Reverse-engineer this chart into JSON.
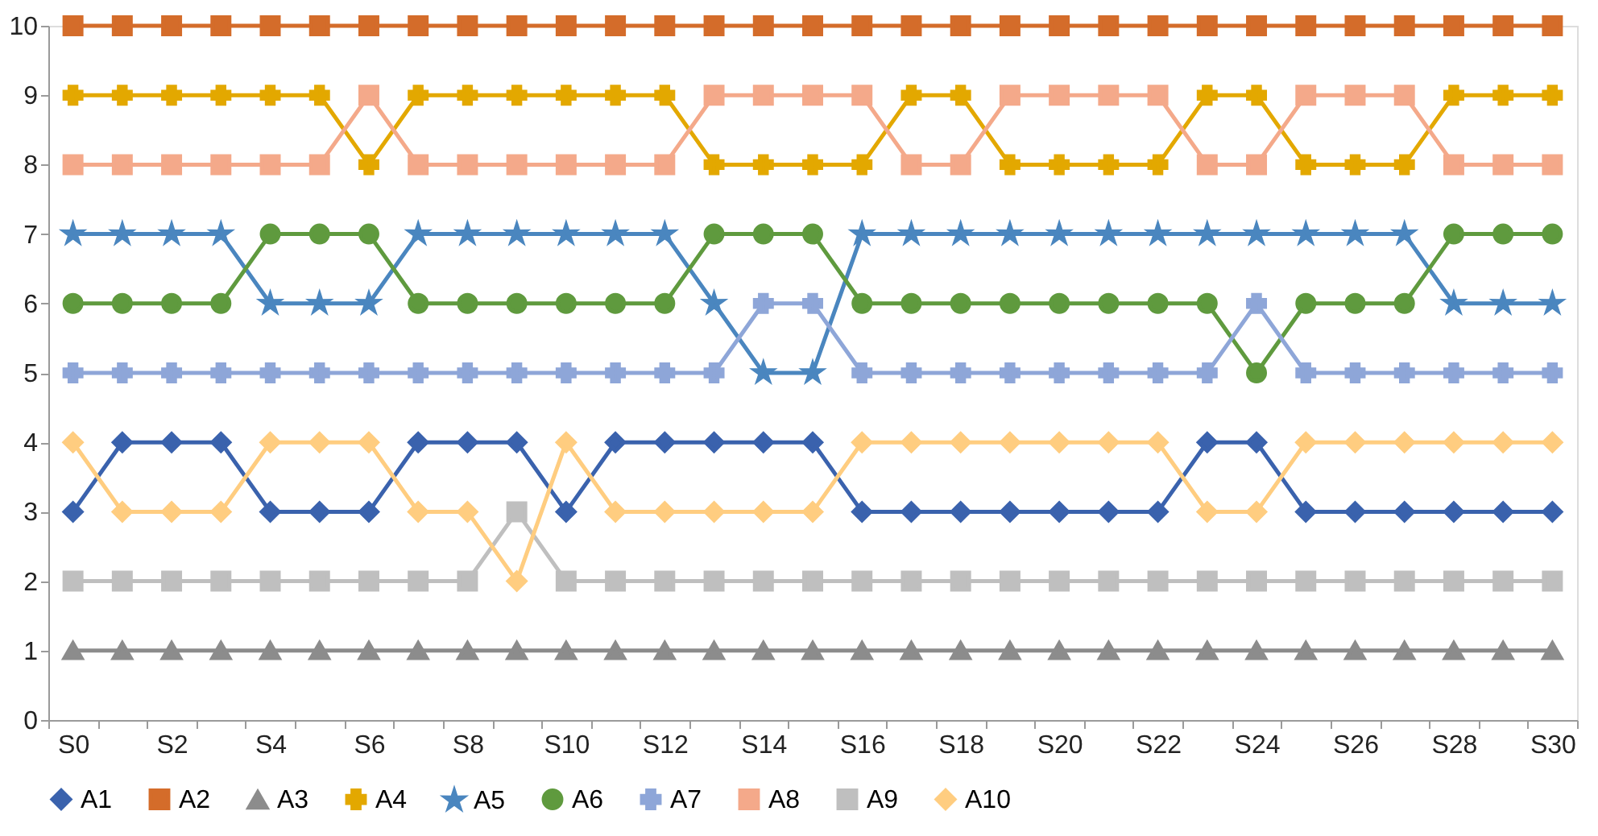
{
  "chart_data": {
    "type": "line",
    "categories": [
      "S0",
      null,
      "S2",
      null,
      "S4",
      null,
      "S6",
      null,
      "S8",
      null,
      "S10",
      null,
      "S12",
      null,
      "S14",
      null,
      "S16",
      null,
      "S18",
      null,
      "S20",
      null,
      "S22",
      null,
      "S24",
      null,
      "S26",
      null,
      "S28",
      null,
      "S30"
    ],
    "series": [
      {
        "name": "A1",
        "color": "#3a62ad",
        "marker": "diamond",
        "values": [
          3,
          4,
          4,
          4,
          3,
          3,
          3,
          4,
          4,
          4,
          3,
          4,
          4,
          4,
          4,
          4,
          3,
          3,
          3,
          3,
          3,
          3,
          3,
          4,
          4,
          3,
          3,
          3,
          3,
          3,
          3
        ]
      },
      {
        "name": "A2",
        "color": "#d46c2a",
        "marker": "square",
        "values": [
          10,
          10,
          10,
          10,
          10,
          10,
          10,
          10,
          10,
          10,
          10,
          10,
          10,
          10,
          10,
          10,
          10,
          10,
          10,
          10,
          10,
          10,
          10,
          10,
          10,
          10,
          10,
          10,
          10,
          10,
          10
        ]
      },
      {
        "name": "A3",
        "color": "#8c8c8c",
        "marker": "triangle",
        "values": [
          1,
          1,
          1,
          1,
          1,
          1,
          1,
          1,
          1,
          1,
          1,
          1,
          1,
          1,
          1,
          1,
          1,
          1,
          1,
          1,
          1,
          1,
          1,
          1,
          1,
          1,
          1,
          1,
          1,
          1,
          1
        ]
      },
      {
        "name": "A4",
        "color": "#e3a800",
        "marker": "cross",
        "values": [
          9,
          9,
          9,
          9,
          9,
          9,
          8,
          9,
          9,
          9,
          9,
          9,
          9,
          8,
          8,
          8,
          8,
          9,
          9,
          8,
          8,
          8,
          8,
          9,
          9,
          8,
          8,
          8,
          9,
          9,
          9
        ]
      },
      {
        "name": "A5",
        "color": "#4a86bf",
        "marker": "star",
        "values": [
          7,
          7,
          7,
          7,
          6,
          6,
          6,
          7,
          7,
          7,
          7,
          7,
          7,
          6,
          5,
          5,
          7,
          7,
          7,
          7,
          7,
          7,
          7,
          7,
          7,
          7,
          7,
          7,
          6,
          6,
          6
        ]
      },
      {
        "name": "A6",
        "color": "#5f9a3e",
        "marker": "circle",
        "values": [
          6,
          6,
          6,
          6,
          7,
          7,
          7,
          6,
          6,
          6,
          6,
          6,
          6,
          7,
          7,
          7,
          6,
          6,
          6,
          6,
          6,
          6,
          6,
          6,
          5,
          6,
          6,
          6,
          7,
          7,
          7
        ]
      },
      {
        "name": "A7",
        "color": "#8ea6d8",
        "marker": "cross",
        "values": [
          5,
          5,
          5,
          5,
          5,
          5,
          5,
          5,
          5,
          5,
          5,
          5,
          5,
          5,
          6,
          6,
          5,
          5,
          5,
          5,
          5,
          5,
          5,
          5,
          6,
          5,
          5,
          5,
          5,
          5,
          5
        ]
      },
      {
        "name": "A8",
        "color": "#f4a98a",
        "marker": "square",
        "values": [
          8,
          8,
          8,
          8,
          8,
          8,
          9,
          8,
          8,
          8,
          8,
          8,
          8,
          9,
          9,
          9,
          9,
          8,
          8,
          9,
          9,
          9,
          9,
          8,
          8,
          9,
          9,
          9,
          8,
          8,
          8
        ]
      },
      {
        "name": "A9",
        "color": "#bfbfbf",
        "marker": "square",
        "values": [
          2,
          2,
          2,
          2,
          2,
          2,
          2,
          2,
          2,
          3,
          2,
          2,
          2,
          2,
          2,
          2,
          2,
          2,
          2,
          2,
          2,
          2,
          2,
          2,
          2,
          2,
          2,
          2,
          2,
          2,
          2
        ]
      },
      {
        "name": "A10",
        "color": "#ffcd80",
        "marker": "diamond",
        "values": [
          4,
          3,
          3,
          3,
          4,
          4,
          4,
          3,
          3,
          2,
          4,
          3,
          3,
          3,
          3,
          3,
          4,
          4,
          4,
          4,
          4,
          4,
          4,
          3,
          3,
          4,
          4,
          4,
          4,
          4,
          4
        ]
      }
    ],
    "ylim": [
      0,
      10
    ],
    "yticks": [
      0,
      1,
      2,
      3,
      4,
      5,
      6,
      7,
      8,
      9,
      10
    ],
    "grid": false,
    "legend": "bottom",
    "line_style": "solid"
  }
}
